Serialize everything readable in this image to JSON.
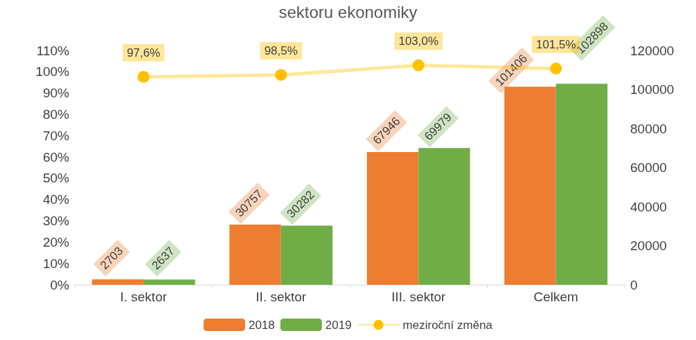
{
  "chart_data": {
    "type": "bar",
    "title": "sektoru ekonomiky",
    "categories": [
      "I. sektor",
      "II. sektor",
      "III. sektor",
      "Celkem"
    ],
    "series": [
      {
        "name": "2018",
        "color": "#ed7d31",
        "axis": "y2",
        "values": [
          2703,
          30757,
          67946,
          101406
        ]
      },
      {
        "name": "2019",
        "color": "#70ad47",
        "axis": "y2",
        "values": [
          2637,
          30282,
          69979,
          102898
        ]
      },
      {
        "name": "meziroční změna",
        "type": "line",
        "color": "#ffc000",
        "marker": "circle",
        "values": [
          97.6,
          98.5,
          103.0,
          101.5
        ],
        "value_labels": [
          "97,6%",
          "98,5%",
          "103,0%",
          "101,5%"
        ]
      }
    ],
    "data_labels": true,
    "ylim": [
      0,
      110
    ],
    "yticks": [
      {
        "value": 0,
        "label": "0%"
      },
      {
        "value": 10,
        "label": "10%"
      },
      {
        "value": 20,
        "label": "20%"
      },
      {
        "value": 30,
        "label": "30%"
      },
      {
        "value": 40,
        "label": "40%"
      },
      {
        "value": 50,
        "label": "50%"
      },
      {
        "value": 60,
        "label": "60%"
      },
      {
        "value": 70,
        "label": "70%"
      },
      {
        "value": 80,
        "label": "80%"
      },
      {
        "value": 90,
        "label": "90%"
      },
      {
        "value": 100,
        "label": "100%"
      },
      {
        "value": 110,
        "label": "110%"
      }
    ],
    "y2lim": [
      0,
      120000
    ],
    "y2ticks": [
      0,
      20000,
      40000,
      60000,
      80000,
      100000,
      120000
    ],
    "grid": false,
    "legend": "bottom"
  }
}
